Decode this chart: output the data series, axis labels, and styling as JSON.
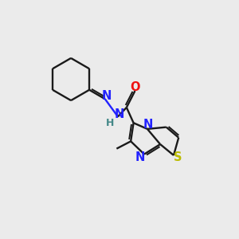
{
  "bg_color": "#ebebeb",
  "bond_color": "#1a1a1a",
  "N_color": "#2222ff",
  "O_color": "#ee1111",
  "S_color": "#bbbb00",
  "H_color": "#448888",
  "lw": 1.7,
  "dbo": 0.1,
  "xlim": [
    0,
    10
  ],
  "ylim": [
    0,
    10
  ]
}
